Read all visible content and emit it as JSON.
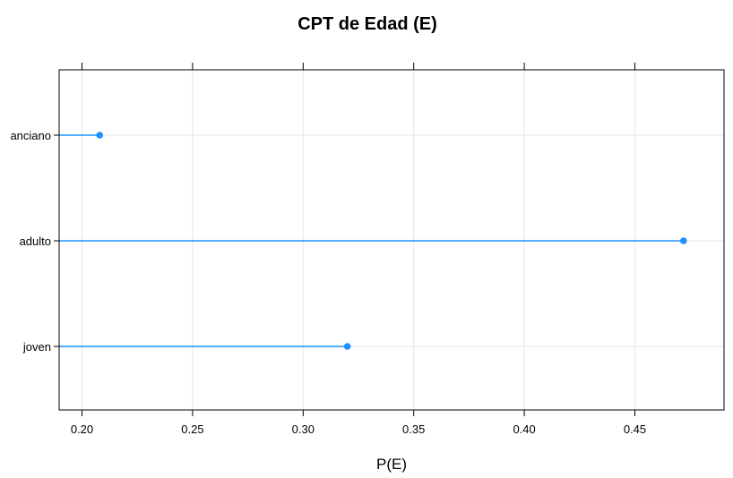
{
  "chart_data": {
    "type": "dotplot",
    "title": "CPT de Edad (E)",
    "xlabel": "P(E)",
    "ylabel": "",
    "categories": [
      "anciano",
      "adulto",
      "joven"
    ],
    "values": [
      0.208,
      0.472,
      0.32
    ],
    "xlim": [
      0.19,
      0.49
    ],
    "xticks": [
      0.2,
      0.25,
      0.3,
      0.35,
      0.4,
      0.45
    ],
    "xtick_labels": [
      "0.20",
      "0.25",
      "0.30",
      "0.35",
      "0.40",
      "0.45"
    ],
    "grid": true,
    "colors": {
      "series": "#1E90FF",
      "grid": "#E6E6E6",
      "frame": "#000000"
    }
  }
}
